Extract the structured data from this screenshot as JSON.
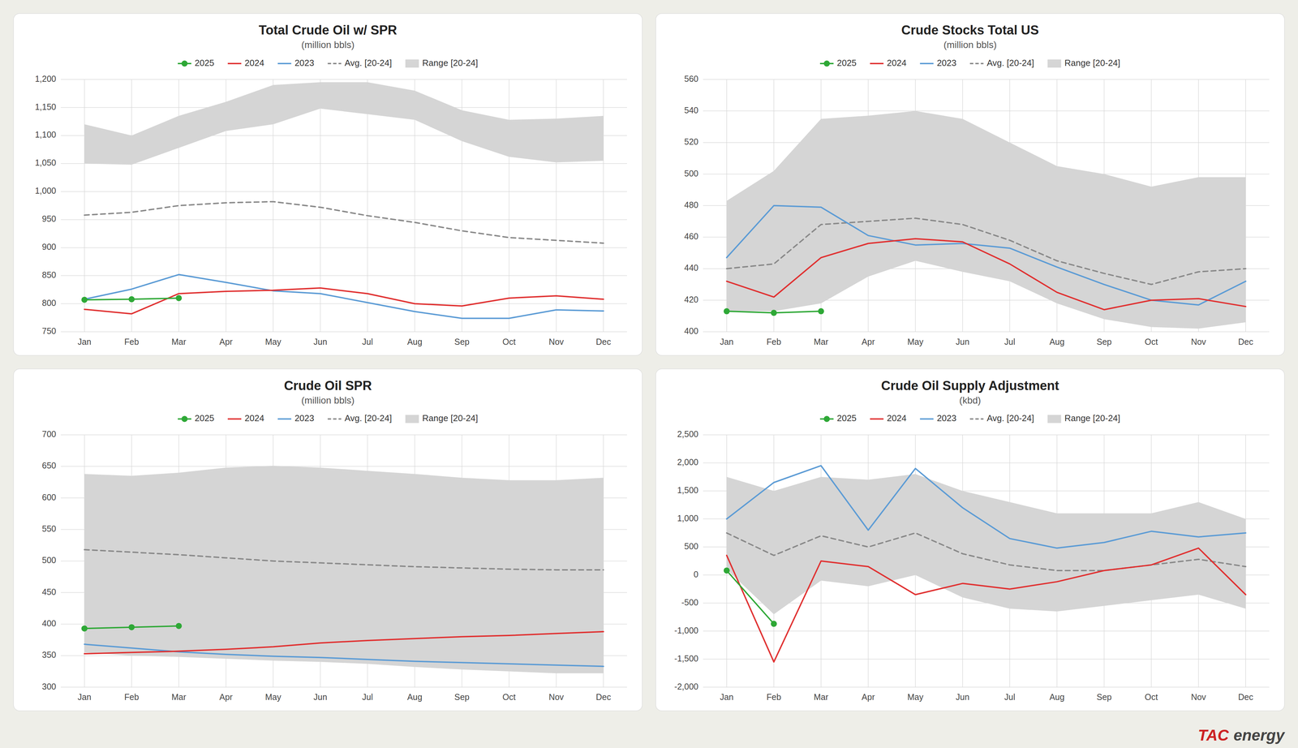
{
  "chart_data": [
    {
      "type": "line",
      "title": "Total Crude Oil w/ SPR",
      "subtitle": "(million bbls)",
      "categories": [
        "Jan",
        "Feb",
        "Mar",
        "Apr",
        "May",
        "Jun",
        "Jul",
        "Aug",
        "Sep",
        "Oct",
        "Nov",
        "Dec"
      ],
      "series": [
        {
          "name": "2025",
          "color": "#2ea836",
          "marker": "circle",
          "values": [
            807,
            808,
            810,
            null,
            null,
            null,
            null,
            null,
            null,
            null,
            null,
            null
          ]
        },
        {
          "name": "2024",
          "color": "#e03030",
          "values": [
            790,
            782,
            818,
            822,
            824,
            828,
            818,
            800,
            796,
            810,
            814,
            808
          ]
        },
        {
          "name": "2023",
          "color": "#5b9bd5",
          "values": [
            808,
            826,
            852,
            838,
            823,
            818,
            802,
            786,
            774,
            774,
            789,
            787
          ]
        },
        {
          "name": "Avg. [20-24]",
          "color": "#888888",
          "line_style": "dashed",
          "values": [
            958,
            963,
            975,
            980,
            982,
            972,
            957,
            945,
            930,
            918,
            913,
            908
          ]
        },
        {
          "name": "Range [20-24]",
          "type": "range",
          "color": "#d5d5d5",
          "upper": [
            1120,
            1100,
            1135,
            1160,
            1190,
            1195,
            1195,
            1180,
            1145,
            1128,
            1130,
            1135
          ],
          "lower": [
            1050,
            1048,
            1078,
            1108,
            1120,
            1148,
            1138,
            1128,
            1090,
            1062,
            1052,
            1055
          ]
        }
      ],
      "ylim": [
        750,
        1200
      ],
      "yticks": [
        750,
        800,
        850,
        900,
        950,
        {
          "value": 1000,
          "label": "1,000"
        },
        {
          "value": 1050,
          "label": "1,050"
        },
        {
          "value": 1100,
          "label": "1,100"
        },
        {
          "value": 1150,
          "label": "1,150"
        },
        {
          "value": 1200,
          "label": "1,200"
        }
      ],
      "grid": true,
      "legend": "top"
    },
    {
      "type": "line",
      "title": "Crude Stocks Total US",
      "subtitle": "(million bbls)",
      "categories": [
        "Jan",
        "Feb",
        "Mar",
        "Apr",
        "May",
        "Jun",
        "Jul",
        "Aug",
        "Sep",
        "Oct",
        "Nov",
        "Dec"
      ],
      "series": [
        {
          "name": "2025",
          "color": "#2ea836",
          "marker": "circle",
          "values": [
            413,
            412,
            413,
            null,
            null,
            null,
            null,
            null,
            null,
            null,
            null,
            null
          ]
        },
        {
          "name": "2024",
          "color": "#e03030",
          "values": [
            432,
            422,
            447,
            456,
            459,
            457,
            443,
            425,
            414,
            420,
            421,
            416
          ]
        },
        {
          "name": "2023",
          "color": "#5b9bd5",
          "values": [
            447,
            480,
            479,
            461,
            455,
            456,
            453,
            441,
            430,
            420,
            417,
            432
          ]
        },
        {
          "name": "Avg. [20-24]",
          "color": "#888888",
          "line_style": "dashed",
          "values": [
            440,
            443,
            468,
            470,
            472,
            468,
            458,
            445,
            437,
            430,
            438,
            440
          ]
        },
        {
          "name": "Range [20-24]",
          "type": "range",
          "color": "#d5d5d5",
          "upper": [
            483,
            502,
            535,
            537,
            540,
            535,
            520,
            505,
            500,
            492,
            498,
            498
          ],
          "lower": [
            413,
            413,
            418,
            435,
            445,
            438,
            432,
            418,
            408,
            403,
            402,
            406
          ]
        }
      ],
      "ylim": [
        400,
        560
      ],
      "yticks": [
        400,
        420,
        440,
        460,
        480,
        500,
        520,
        540,
        560
      ],
      "grid": true,
      "legend": "top"
    },
    {
      "type": "line",
      "title": "Crude Oil SPR",
      "subtitle": "(million bbls)",
      "categories": [
        "Jan",
        "Feb",
        "Mar",
        "Apr",
        "May",
        "Jun",
        "Jul",
        "Aug",
        "Sep",
        "Oct",
        "Nov",
        "Dec"
      ],
      "series": [
        {
          "name": "2025",
          "color": "#2ea836",
          "marker": "circle",
          "values": [
            393,
            395,
            397,
            null,
            null,
            null,
            null,
            null,
            null,
            null,
            null,
            null
          ]
        },
        {
          "name": "2024",
          "color": "#e03030",
          "values": [
            353,
            355,
            357,
            360,
            364,
            370,
            374,
            377,
            380,
            382,
            385,
            388
          ]
        },
        {
          "name": "2023",
          "color": "#5b9bd5",
          "values": [
            368,
            362,
            356,
            352,
            349,
            347,
            344,
            341,
            339,
            337,
            335,
            333
          ]
        },
        {
          "name": "Avg. [20-24]",
          "color": "#888888",
          "line_style": "dashed",
          "values": [
            518,
            514,
            510,
            505,
            500,
            497,
            494,
            491,
            489,
            487,
            486,
            486
          ]
        },
        {
          "name": "Range [20-24]",
          "type": "range",
          "color": "#d5d5d5",
          "upper": [
            638,
            635,
            640,
            648,
            651,
            648,
            643,
            638,
            632,
            628,
            628,
            632
          ],
          "lower": [
            355,
            350,
            348,
            345,
            342,
            340,
            337,
            332,
            328,
            325,
            322,
            322
          ]
        }
      ],
      "ylim": [
        300,
        700
      ],
      "yticks": [
        300,
        350,
        400,
        450,
        500,
        550,
        600,
        650,
        700
      ],
      "grid": true,
      "legend": "top"
    },
    {
      "type": "line",
      "title": "Crude Oil Supply Adjustment",
      "subtitle": "(kbd)",
      "categories": [
        "Jan",
        "Feb",
        "Mar",
        "Apr",
        "May",
        "Jun",
        "Jul",
        "Aug",
        "Sep",
        "Oct",
        "Nov",
        "Dec"
      ],
      "series": [
        {
          "name": "2025",
          "color": "#2ea836",
          "marker": "circle",
          "values": [
            80,
            -870,
            null,
            null,
            null,
            null,
            null,
            null,
            null,
            null,
            null,
            null
          ]
        },
        {
          "name": "2024",
          "color": "#e03030",
          "values": [
            350,
            -1550,
            250,
            150,
            -350,
            -150,
            -250,
            -120,
            80,
            180,
            480,
            -350
          ]
        },
        {
          "name": "2023",
          "color": "#5b9bd5",
          "values": [
            1000,
            1650,
            1950,
            800,
            1900,
            1200,
            650,
            480,
            580,
            780,
            680,
            750
          ]
        },
        {
          "name": "Avg. [20-24]",
          "color": "#888888",
          "line_style": "dashed",
          "values": [
            750,
            350,
            700,
            500,
            750,
            380,
            180,
            80,
            80,
            180,
            280,
            150
          ]
        },
        {
          "name": "Range [20-24]",
          "type": "range",
          "color": "#d5d5d5",
          "upper": [
            1750,
            1500,
            1750,
            1700,
            1800,
            1500,
            1300,
            1100,
            1100,
            1100,
            1300,
            1000
          ],
          "lower": [
            100,
            -700,
            -100,
            -200,
            0,
            -400,
            -600,
            -650,
            -550,
            -450,
            -350,
            -600
          ]
        }
      ],
      "ylim": [
        -2000,
        2500
      ],
      "yticks": [
        {
          "value": -2000,
          "label": "-2,000"
        },
        {
          "value": -1500,
          "label": "-1,500"
        },
        {
          "value": -1000,
          "label": "-1,000"
        },
        -500,
        0,
        500,
        {
          "value": 1000,
          "label": "1,000"
        },
        {
          "value": 1500,
          "label": "1,500"
        },
        {
          "value": 2000,
          "label": "2,000"
        },
        {
          "value": 2500,
          "label": "2,500"
        }
      ],
      "grid": true,
      "legend": "top",
      "annotations": [
        {
          "text": "TAC",
          "color": "#cc2222"
        },
        {
          "text": "energy",
          "color": "#444444"
        }
      ]
    }
  ]
}
